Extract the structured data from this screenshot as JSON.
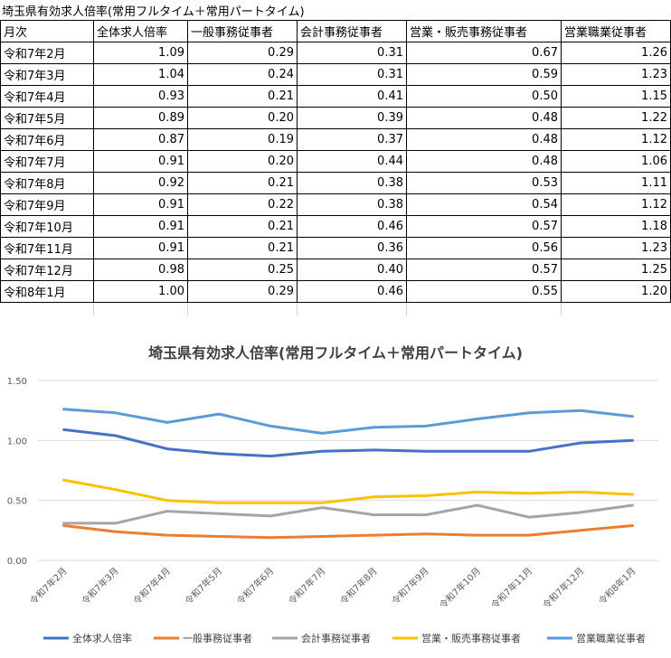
{
  "sheet_title": "埼玉県有効求人倍率(常用フルタイム＋常用パートタイム)",
  "table": {
    "headers": [
      "月次",
      "全体求人倍率",
      "一般事務従事者",
      "会計事務従事者",
      "営業・販売事務従事者",
      "営業職業従事者"
    ],
    "rows": [
      [
        "令和7年2月",
        "1.09",
        "0.29",
        "0.31",
        "0.67",
        "1.26"
      ],
      [
        "令和7年3月",
        "1.04",
        "0.24",
        "0.31",
        "0.59",
        "1.23"
      ],
      [
        "令和7年4月",
        "0.93",
        "0.21",
        "0.41",
        "0.50",
        "1.15"
      ],
      [
        "令和7年5月",
        "0.89",
        "0.20",
        "0.39",
        "0.48",
        "1.22"
      ],
      [
        "令和7年6月",
        "0.87",
        "0.19",
        "0.37",
        "0.48",
        "1.12"
      ],
      [
        "令和7年7月",
        "0.91",
        "0.20",
        "0.44",
        "0.48",
        "1.06"
      ],
      [
        "令和7年8月",
        "0.92",
        "0.21",
        "0.38",
        "0.53",
        "1.11"
      ],
      [
        "令和7年9月",
        "0.91",
        "0.22",
        "0.38",
        "0.54",
        "1.12"
      ],
      [
        "令和7年10月",
        "0.91",
        "0.21",
        "0.46",
        "0.57",
        "1.18"
      ],
      [
        "令和7年11月",
        "0.91",
        "0.21",
        "0.36",
        "0.56",
        "1.23"
      ],
      [
        "令和7年12月",
        "0.98",
        "0.25",
        "0.40",
        "0.57",
        "1.25"
      ],
      [
        "令和8年1月",
        "1.00",
        "0.29",
        "0.46",
        "0.55",
        "1.20"
      ]
    ]
  },
  "chart_data": {
    "type": "line",
    "title": "埼玉県有効求人倍率(常用フルタイム＋常用パートタイム)",
    "xlabel": "",
    "ylabel": "",
    "ylim": [
      0,
      1.5
    ],
    "yticks": [
      "0.00",
      "0.50",
      "1.00",
      "1.50"
    ],
    "grid": true,
    "legend_position": "bottom",
    "categories": [
      "令和7年2月",
      "令和7年3月",
      "令和7年4月",
      "令和7年5月",
      "令和7年6月",
      "令和7年7月",
      "令和7年8月",
      "令和7年9月",
      "令和7年10月",
      "令和7年11月",
      "令和7年12月",
      "令和8年1月"
    ],
    "series": [
      {
        "name": "全体求人倍率",
        "color": "#4472C4",
        "values": [
          1.09,
          1.04,
          0.93,
          0.89,
          0.87,
          0.91,
          0.92,
          0.91,
          0.91,
          0.91,
          0.98,
          1.0
        ]
      },
      {
        "name": "一般事務従事者",
        "color": "#ED7D31",
        "values": [
          0.29,
          0.24,
          0.21,
          0.2,
          0.19,
          0.2,
          0.21,
          0.22,
          0.21,
          0.21,
          0.25,
          0.29
        ]
      },
      {
        "name": "会計事務従事者",
        "color": "#A5A5A5",
        "values": [
          0.31,
          0.31,
          0.41,
          0.39,
          0.37,
          0.44,
          0.38,
          0.38,
          0.46,
          0.36,
          0.4,
          0.46
        ]
      },
      {
        "name": "営業・販売事務従事者",
        "color": "#FFC000",
        "values": [
          0.67,
          0.59,
          0.5,
          0.48,
          0.48,
          0.48,
          0.53,
          0.54,
          0.57,
          0.56,
          0.57,
          0.55
        ]
      },
      {
        "name": "営業職業従事者",
        "color": "#5B9BD5",
        "values": [
          1.26,
          1.23,
          1.15,
          1.22,
          1.12,
          1.06,
          1.11,
          1.12,
          1.18,
          1.23,
          1.25,
          1.2
        ]
      }
    ]
  }
}
